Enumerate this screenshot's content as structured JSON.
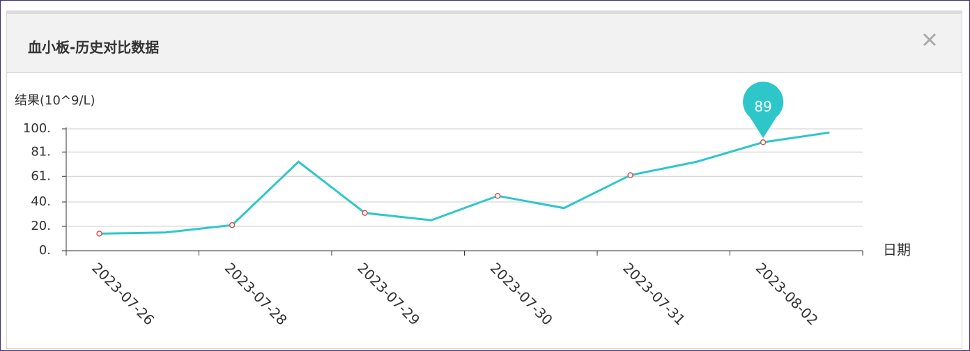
{
  "dialog": {
    "title": "血小板-历史对比数据"
  },
  "chart_data": {
    "type": "line",
    "y_axis_label": "结果(10^9/L)",
    "x_axis_label": "日期",
    "categories": [
      "2023-07-26",
      null,
      "2023-07-28",
      null,
      "2023-07-29",
      null,
      "2023-07-30",
      null,
      "2023-07-31",
      null,
      "2023-08-02",
      null
    ],
    "series": [
      {
        "name": "血小板",
        "color": "#2ec7c9",
        "values": [
          14,
          15,
          21,
          73,
          31,
          25,
          45,
          35,
          62,
          73,
          89,
          97
        ],
        "value_labels": [
          null,
          null,
          null,
          null,
          null,
          null,
          null,
          null,
          null,
          null,
          "89",
          null
        ]
      }
    ],
    "ylim": [
      0,
      100
    ],
    "yticks": [
      {
        "value": 0,
        "label": "0."
      },
      {
        "value": 20,
        "label": "20."
      },
      {
        "value": 40,
        "label": "40."
      },
      {
        "value": 61,
        "label": "61."
      },
      {
        "value": 81,
        "label": "81."
      },
      {
        "value": 100,
        "label": "100."
      }
    ],
    "grid": true
  }
}
